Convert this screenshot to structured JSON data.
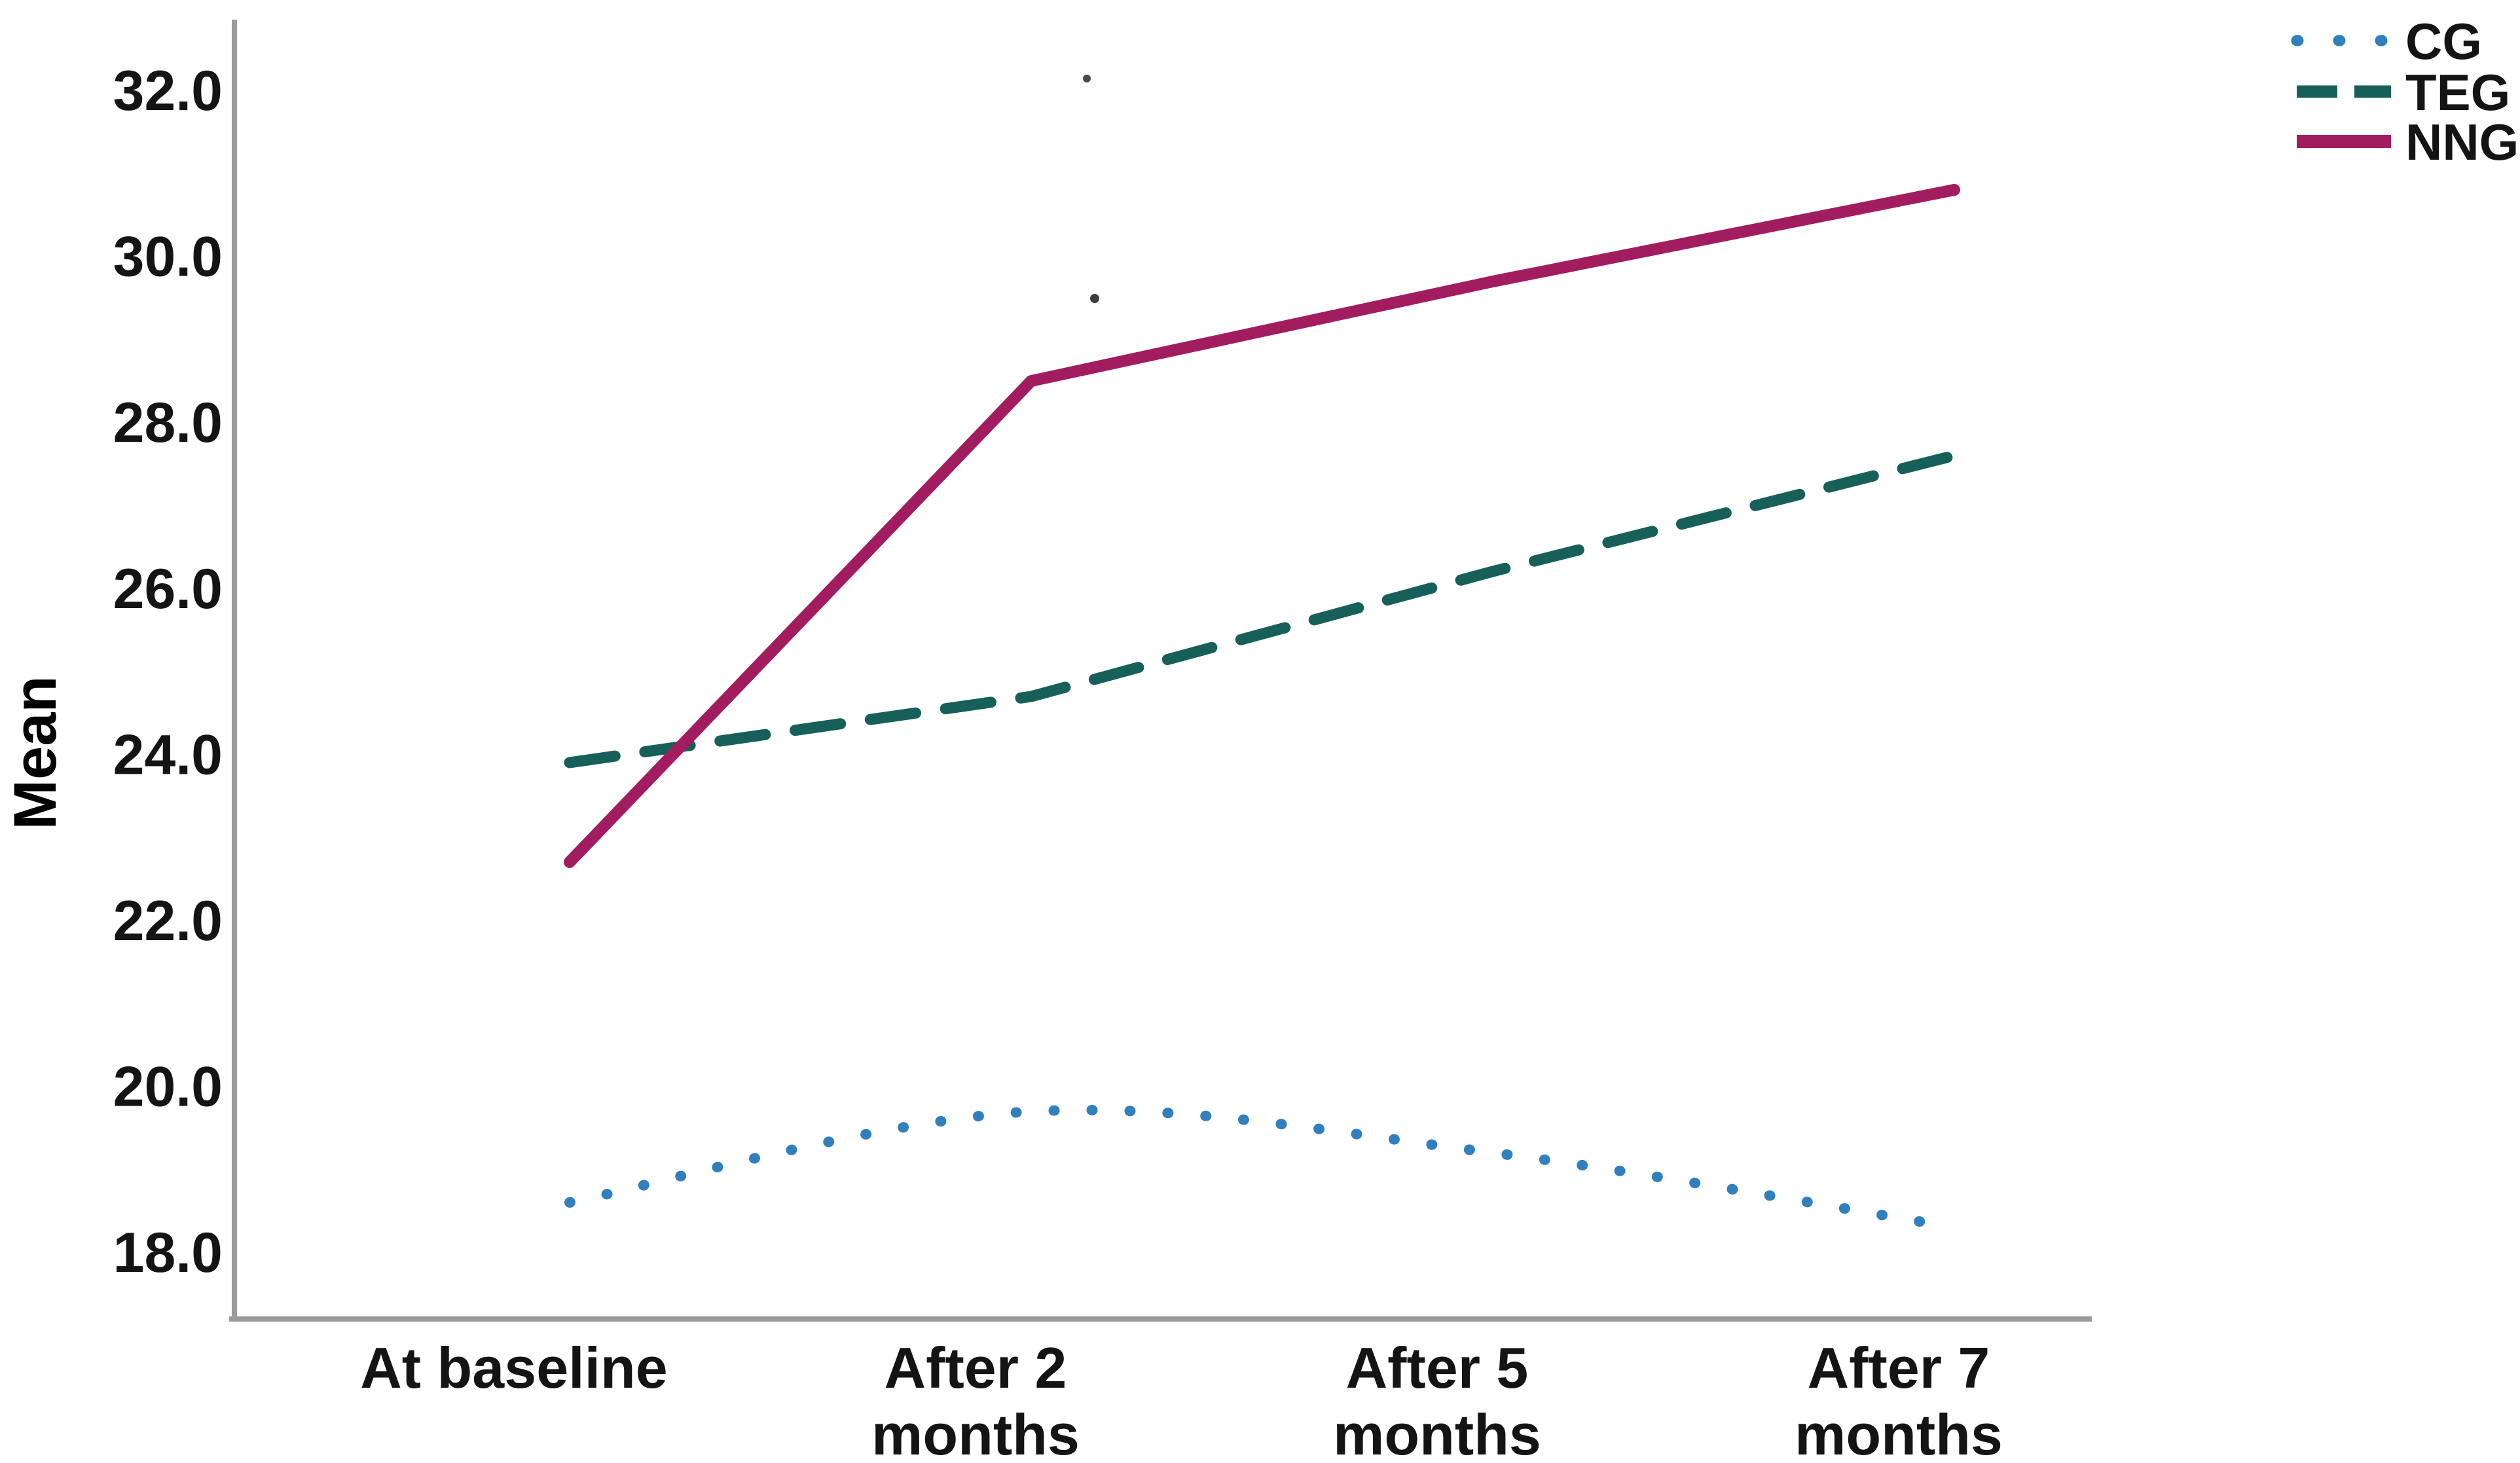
{
  "chart_data": {
    "type": "line",
    "title": "",
    "xlabel": "",
    "ylabel": "Mean",
    "categories": [
      "At baseline",
      "After 2 months",
      "After 5 months",
      "After 7 months"
    ],
    "category_label_lines": [
      [
        "At baseline"
      ],
      [
        "After 2",
        "months"
      ],
      [
        "After 5",
        "months"
      ],
      [
        "After 7",
        "months"
      ]
    ],
    "series": [
      {
        "name": "CG",
        "values": [
          18.6,
          19.7,
          19.2,
          18.3
        ],
        "color": "#3180bd",
        "line_style": "dotted",
        "shape": "smooth"
      },
      {
        "name": "TEG",
        "values": [
          23.9,
          24.7,
          26.2,
          27.6
        ],
        "color": "#17605a",
        "line_style": "dashed",
        "shape": "straight"
      },
      {
        "name": "NNG",
        "values": [
          22.7,
          28.5,
          29.7,
          30.8
        ],
        "color": "#a11d5f",
        "line_style": "solid",
        "shape": "straight"
      }
    ],
    "yticks": [
      18,
      20,
      22,
      24,
      26,
      28,
      30,
      32
    ],
    "ytick_labels": [
      "18.0",
      "20.0",
      "22.0",
      "24.0",
      "26.0",
      "28.0",
      "30.0",
      "32.0"
    ],
    "ylim": [
      17.2,
      32.8
    ],
    "grid": false,
    "legend_position": "top-right",
    "axis_color": "#9b9b9b",
    "text_color": "#141414"
  }
}
